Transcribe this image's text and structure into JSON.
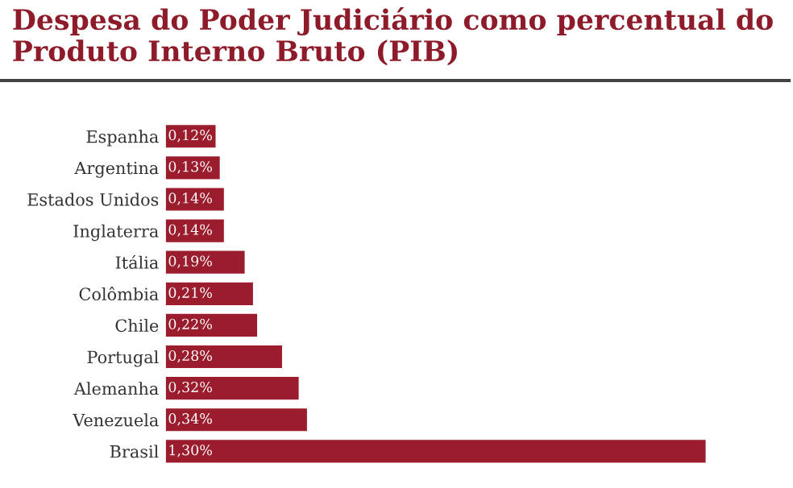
{
  "chart_data": {
    "type": "bar",
    "orientation": "horizontal",
    "title": "Despesa do Poder Judiciário como percentual do Produto Interno Bruto (PIB)",
    "categories": [
      "Espanha",
      "Argentina",
      "Estados Unidos",
      "Inglaterra",
      "Itália",
      "Colômbia",
      "Chile",
      "Portugal",
      "Alemanha",
      "Venezuela",
      "Brasil"
    ],
    "values": [
      0.12,
      0.13,
      0.14,
      0.14,
      0.19,
      0.21,
      0.22,
      0.28,
      0.32,
      0.34,
      1.3
    ],
    "value_labels": [
      "0,12%",
      "0,13%",
      "0,14%",
      "0,14%",
      "0,19%",
      "0,21%",
      "0,22%",
      "0,28%",
      "0,32%",
      "0,34%",
      "1,30%"
    ],
    "color": "#9b1c2c",
    "grid": false,
    "legend": false
  }
}
